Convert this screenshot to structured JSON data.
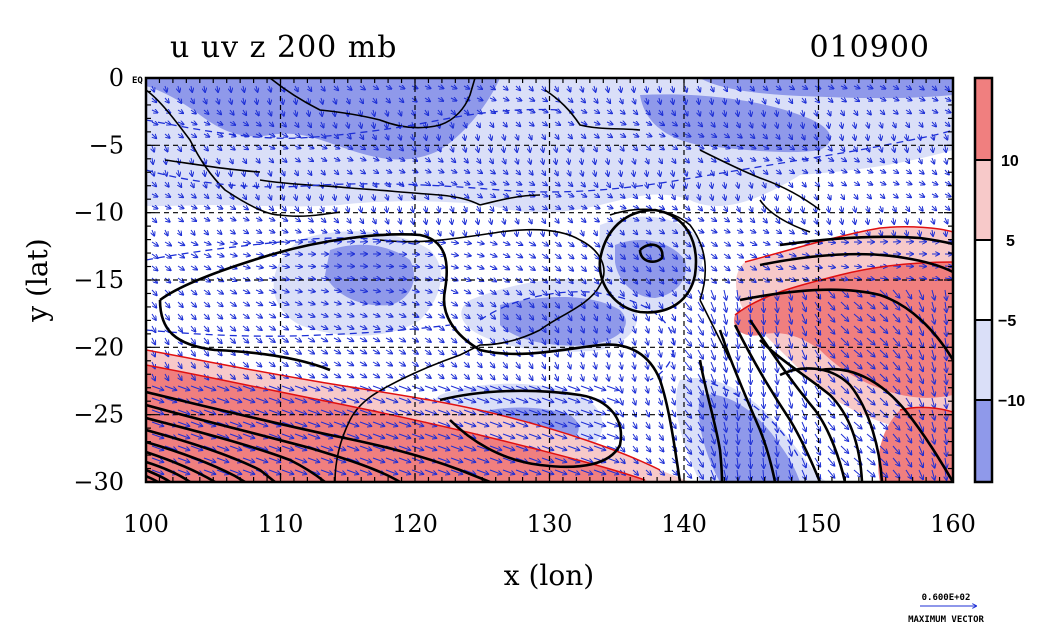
{
  "title_left": "u uv z 200 mb",
  "title_right": "010900",
  "colors": {
    "blue_strong": "#8f99ea",
    "blue_light": "#dadff8",
    "white": "#ffffff",
    "pink_light": "#f7c9c9",
    "red_strong": "#f07f7f",
    "vector": "#1d2fd6",
    "contour": "#000000",
    "red_line": "#e01010",
    "blue_dash": "#1d2fd6"
  },
  "chart_data": {
    "type": "heatmap",
    "title": "u uv z 200 mb",
    "timestamp": "010900",
    "xlabel": "x (lon)",
    "ylabel": "y (lat)",
    "xlim": [
      100,
      160
    ],
    "ylim": [
      -30,
      0
    ],
    "x_ticks": [
      "100",
      "110",
      "120",
      "130",
      "140",
      "150",
      "160"
    ],
    "y_ticks": [
      "0",
      "−5",
      "−10",
      "−15",
      "−20",
      "−25",
      "−30"
    ],
    "top_left_marker": "EQ",
    "grid": true,
    "colorbar": {
      "labels": [
        "10",
        "5",
        "−5",
        "−10"
      ],
      "levels": [
        10,
        5,
        -5,
        -10
      ]
    },
    "vector_reference": {
      "label": "0.600E+02",
      "caption": "MAXIMUM VECTOR"
    }
  }
}
